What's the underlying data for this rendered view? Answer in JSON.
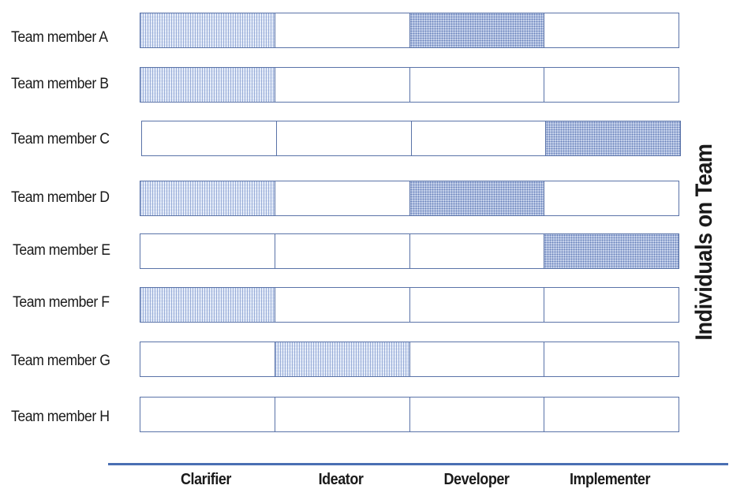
{
  "side_title": "Individuals on Team",
  "columns": [
    "Clarifier",
    "Ideator",
    "Developer",
    "Implementer"
  ],
  "rows": [
    {
      "label": "Team member A",
      "cells": [
        "lines",
        "none",
        "dots",
        "none"
      ]
    },
    {
      "label": "Team member B",
      "cells": [
        "lines",
        "none",
        "none",
        "none"
      ]
    },
    {
      "label": "Team member C",
      "cells": [
        "none",
        "none",
        "none",
        "dots"
      ]
    },
    {
      "label": "Team member D",
      "cells": [
        "lines",
        "none",
        "dots",
        "none"
      ]
    },
    {
      "label": "Team member E",
      "cells": [
        "none",
        "none",
        "none",
        "dots"
      ]
    },
    {
      "label": "Team member F",
      "cells": [
        "lines",
        "none",
        "none",
        "none"
      ]
    },
    {
      "label": "Team member G",
      "cells": [
        "none",
        "lines",
        "none",
        "none"
      ]
    },
    {
      "label": "Team member H",
      "cells": [
        "none",
        "none",
        "none",
        "none"
      ]
    }
  ],
  "colors": {
    "grid": "#5a73a8",
    "axis": "#4a6fb3",
    "fill_light": "#dde6f6",
    "fill_dark": "#c9d5ec"
  }
}
